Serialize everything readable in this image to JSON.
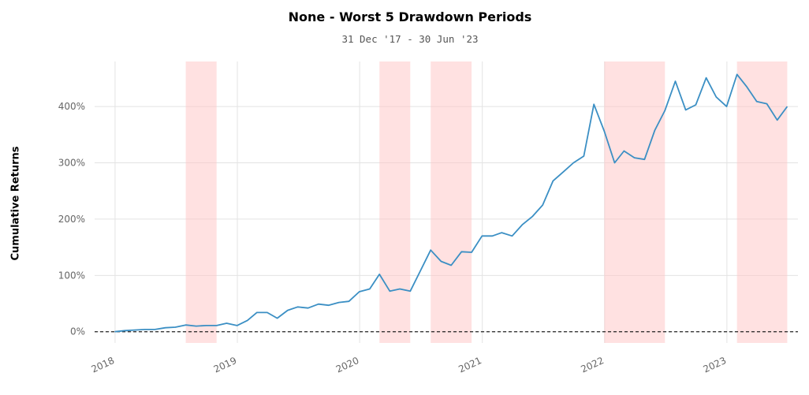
{
  "chart_data": {
    "type": "line",
    "title": "None - Worst 5 Drawdown Periods",
    "subtitle": "31 Dec '17 - 30 Jun '23",
    "ylabel": "Cumulative Returns",
    "xlabel": "",
    "x_ticks": [
      "2018",
      "2019",
      "2020",
      "2021",
      "2022",
      "2023"
    ],
    "y_ticks": [
      "0%",
      "100%",
      "200%",
      "300%",
      "400%"
    ],
    "y_tick_values": [
      0,
      100,
      200,
      300,
      400
    ],
    "ylim": [
      -20,
      480
    ],
    "xlim": [
      "2017-11-01",
      "2023-08-01"
    ],
    "grid": true,
    "baseline": 0,
    "line_color": "#3b8fc4",
    "shade_color": "#ffc4c4",
    "drawdown_periods": [
      {
        "start": "2018-07-31",
        "end": "2018-10-31"
      },
      {
        "start": "2020-02-29",
        "end": "2020-05-31"
      },
      {
        "start": "2020-07-31",
        "end": "2020-11-30"
      },
      {
        "start": "2021-12-31",
        "end": "2022-06-30"
      },
      {
        "start": "2023-01-31",
        "end": "2023-06-30"
      }
    ],
    "series": [
      {
        "x": [
          "2017-12-31",
          "2018-01-31",
          "2018-02-28",
          "2018-03-31",
          "2018-04-30",
          "2018-05-31",
          "2018-06-30",
          "2018-07-31",
          "2018-08-31",
          "2018-09-30",
          "2018-10-31",
          "2018-11-30",
          "2018-12-31",
          "2019-01-31",
          "2019-02-28",
          "2019-03-31",
          "2019-04-30",
          "2019-05-31",
          "2019-06-30",
          "2019-07-31",
          "2019-08-31",
          "2019-09-30",
          "2019-10-31",
          "2019-11-30",
          "2019-12-31",
          "2020-01-31",
          "2020-02-29",
          "2020-03-31",
          "2020-04-30",
          "2020-05-31",
          "2020-06-30",
          "2020-07-31",
          "2020-08-31",
          "2020-09-30",
          "2020-10-31",
          "2020-11-30",
          "2020-12-31",
          "2021-01-31",
          "2021-02-28",
          "2021-03-31",
          "2021-04-30",
          "2021-05-31",
          "2021-06-30",
          "2021-07-31",
          "2021-08-31",
          "2021-09-30",
          "2021-10-31",
          "2021-11-30",
          "2021-12-31",
          "2022-01-31",
          "2022-02-28",
          "2022-03-31",
          "2022-04-30",
          "2022-05-31",
          "2022-06-30",
          "2022-07-31",
          "2022-08-31",
          "2022-09-30",
          "2022-10-31",
          "2022-11-30",
          "2022-12-31",
          "2023-01-31",
          "2023-02-28",
          "2023-03-31",
          "2023-04-30",
          "2023-05-31",
          "2023-06-30"
        ],
        "values": [
          0,
          2,
          3,
          4,
          4,
          7,
          8,
          12,
          10,
          11,
          11,
          15,
          11,
          20,
          34,
          34,
          24,
          38,
          44,
          42,
          49,
          47,
          52,
          54,
          71,
          76,
          102,
          72,
          76,
          72,
          108,
          145,
          125,
          118,
          142,
          141,
          170,
          170,
          176,
          170,
          190,
          205,
          225,
          268,
          284,
          300,
          312,
          404,
          356,
          300,
          321,
          309,
          306,
          358,
          393,
          445,
          394,
          403,
          451,
          417,
          400,
          457,
          436,
          409,
          405,
          376,
          400
        ]
      }
    ]
  }
}
